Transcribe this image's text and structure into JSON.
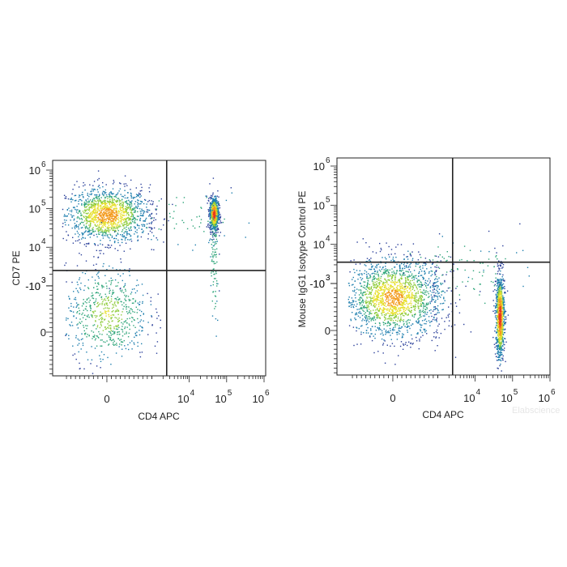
{
  "watermark": "Elabscience",
  "chart_data": [
    {
      "type": "scatter",
      "xlabel": "CD4 APC",
      "ylabel": "CD7 PE",
      "xticks": [
        {
          "base": "0",
          "sup": "",
          "v": 0
        },
        {
          "base": "10",
          "sup": "4",
          "v": 10000
        },
        {
          "base": "10",
          "sup": "5",
          "v": 100000
        },
        {
          "base": "10",
          "sup": "6",
          "v": 1000000
        }
      ],
      "yticks": [
        {
          "base": "10",
          "sup": "6",
          "v": 1000000
        },
        {
          "base": "10",
          "sup": "5",
          "v": 100000
        },
        {
          "base": "10",
          "sup": "4",
          "v": 10000
        },
        {
          "base": "10",
          "sup": "3",
          "v": 1000
        },
        {
          "base": "0",
          "sup": "",
          "v": 0
        },
        {
          "base": "-10",
          "sup": "3",
          "v": -1000
        }
      ],
      "quadrant_gate": {
        "x": 2500,
        "y": 2500
      },
      "populations": [
        {
          "cx": 0,
          "cy": 70000,
          "sx": 0.55,
          "sy": 0.35,
          "n": 1400,
          "hot": 0.75
        },
        {
          "cx": 45000,
          "cy": 75000,
          "sx": 0.06,
          "sy": 0.22,
          "n": 800,
          "hot": 1.0
        },
        {
          "cx": 0,
          "cy": 400,
          "sx": 0.55,
          "sy": 0.6,
          "n": 650,
          "hot": 0.45
        },
        {
          "cx": 45000,
          "cy": 3000,
          "sx": 0.06,
          "sy": 0.9,
          "n": 90,
          "hot": 0.0
        },
        {
          "cx": 8000,
          "cy": 60000,
          "sx": 0.9,
          "sy": 0.4,
          "n": 60,
          "hot": 0.0
        }
      ]
    },
    {
      "type": "scatter",
      "xlabel": "CD4 APC",
      "ylabel": "Mouse IgG1 Isotype Control PE",
      "xticks": [
        {
          "base": "0",
          "sup": "",
          "v": 0
        },
        {
          "base": "10",
          "sup": "4",
          "v": 10000
        },
        {
          "base": "10",
          "sup": "5",
          "v": 100000
        },
        {
          "base": "10",
          "sup": "6",
          "v": 1000000
        }
      ],
      "yticks": [
        {
          "base": "10",
          "sup": "6",
          "v": 1000000
        },
        {
          "base": "10",
          "sup": "5",
          "v": 100000
        },
        {
          "base": "10",
          "sup": "4",
          "v": 10000
        },
        {
          "base": "10",
          "sup": "3",
          "v": 1000
        },
        {
          "base": "0",
          "sup": "",
          "v": 0
        },
        {
          "base": "-10",
          "sup": "3",
          "v": -1000
        }
      ],
      "quadrant_gate": {
        "x": 2500,
        "y": 3500
      },
      "populations": [
        {
          "cx": 0,
          "cy": 700,
          "sx": 0.65,
          "sy": 0.5,
          "n": 1800,
          "hot": 0.7
        },
        {
          "cx": 45000,
          "cy": 300,
          "sx": 0.06,
          "sy": 0.55,
          "n": 900,
          "hot": 1.0
        },
        {
          "cx": 1500,
          "cy": 4000,
          "sx": 0.7,
          "sy": 0.3,
          "n": 40,
          "hot": 0.0
        },
        {
          "cx": 10000,
          "cy": 1500,
          "sx": 0.8,
          "sy": 0.5,
          "n": 60,
          "hot": 0.0
        }
      ]
    }
  ]
}
